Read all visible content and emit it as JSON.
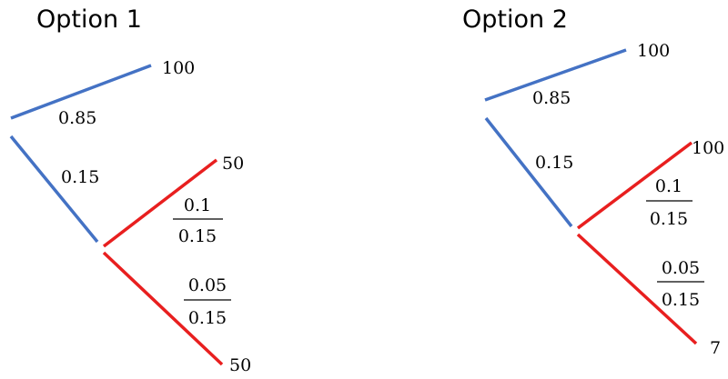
{
  "colors": {
    "upper_branch": "#4472C4",
    "lower_branch": "#E81F1F"
  },
  "option1": {
    "title": "Option 1",
    "top_outcome": "100",
    "top_prob": "0.85",
    "down_prob": "0.15",
    "mid_outcome": "50",
    "mid_prob": {
      "numerator": "0.1",
      "denominator": "0.15"
    },
    "bottom_prob": {
      "numerator": "0.05",
      "denominator": "0.15"
    },
    "bottom_outcome": "50"
  },
  "option2": {
    "title": "Option 2",
    "top_outcome": "100",
    "top_prob": "0.85",
    "down_prob": "0.15",
    "mid_outcome": "100",
    "mid_prob": {
      "numerator": "0.1",
      "denominator": "0.15"
    },
    "bottom_prob": {
      "numerator": "0.05",
      "denominator": "0.15"
    },
    "bottom_outcome": "7"
  }
}
